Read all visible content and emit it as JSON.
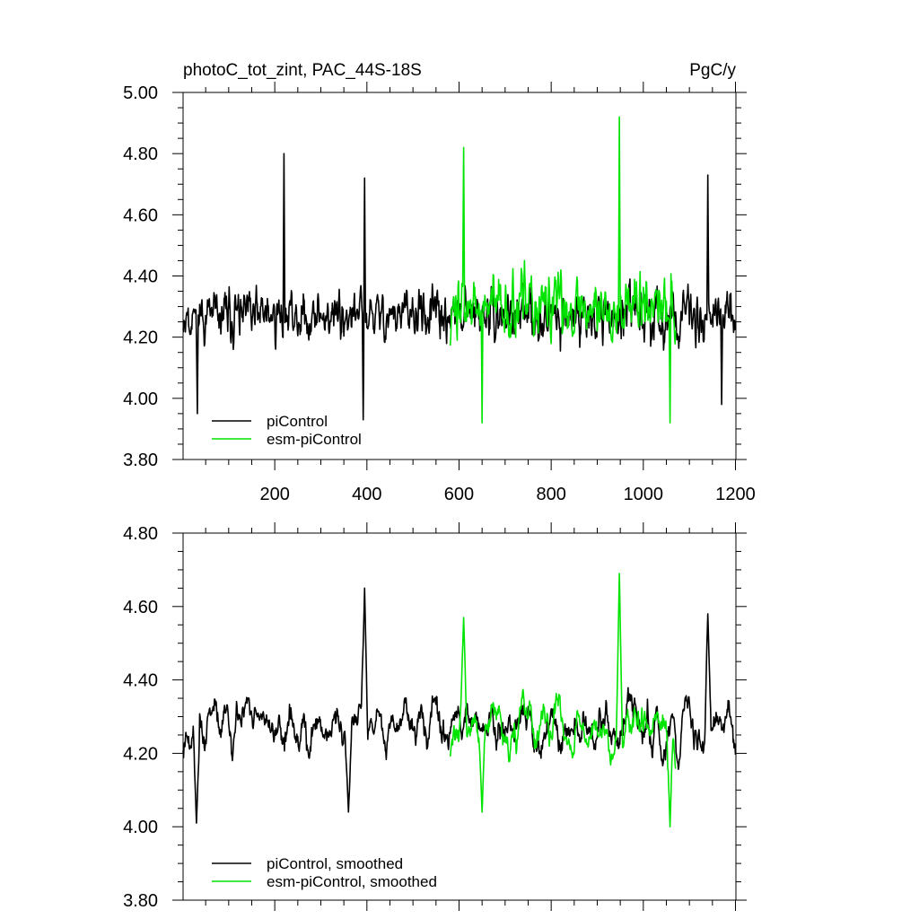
{
  "chart_data": [
    {
      "type": "line",
      "title_left": "photoC_tot_zint, PAC_44S-18S",
      "title_right": "PgC/y",
      "xlabel": "",
      "ylabel": "",
      "xlim": [
        1,
        1201
      ],
      "ylim": [
        3.8,
        5.0
      ],
      "x_ticks": [
        200,
        400,
        600,
        800,
        1000,
        1200
      ],
      "x_tick_labels": [
        "200",
        "400",
        "600",
        "800",
        "1000",
        "1200"
      ],
      "y_ticks": [
        3.8,
        4.0,
        4.2,
        4.4,
        4.6,
        4.8,
        5.0
      ],
      "y_tick_labels": [
        "3.80",
        "4.00",
        "4.20",
        "4.40",
        "4.60",
        "4.80",
        "5.00"
      ],
      "grid": false,
      "legend_position": "bottom-left",
      "series": [
        {
          "name": "piControl",
          "color": "#000000",
          "x_start": 1,
          "x_end": 1200,
          "mean": 4.27,
          "amplitude": 0.14,
          "smoothing": 1,
          "seed": 11,
          "peaks": [
            [
              220,
              4.8
            ],
            [
              395,
              4.72
            ],
            [
              1140,
              4.73
            ],
            [
              32,
              3.95
            ],
            [
              392,
              3.93
            ],
            [
              1170,
              3.98
            ]
          ]
        },
        {
          "name": "esm-piControl",
          "color": "#00e400",
          "x_start": 581,
          "x_end": 1070,
          "mean": 4.3,
          "amplitude": 0.17,
          "smoothing": 1,
          "seed": 37,
          "peaks": [
            [
              610,
              4.82
            ],
            [
              948,
              4.92
            ],
            [
              650,
              3.92
            ],
            [
              1058,
              3.92
            ]
          ]
        }
      ]
    },
    {
      "type": "line",
      "xlim": [
        1,
        1201
      ],
      "ylim": [
        3.8,
        4.8
      ],
      "x_ticks": [
        200,
        400,
        600,
        800,
        1000,
        1200
      ],
      "y_ticks": [
        3.8,
        4.0,
        4.2,
        4.4,
        4.6,
        4.8
      ],
      "y_tick_labels": [
        "3.80",
        "4.00",
        "4.20",
        "4.40",
        "4.60",
        "4.80"
      ],
      "grid": false,
      "legend_position": "bottom-left",
      "series": [
        {
          "name": "piControl, smoothed",
          "color": "#000000",
          "x_start": 1,
          "x_end": 1200,
          "mean": 4.27,
          "amplitude": 0.11,
          "smoothing": 5,
          "seed": 11,
          "peaks": [
            [
              395,
              4.65
            ],
            [
              1140,
              4.58
            ],
            [
              30,
              4.01
            ],
            [
              360,
              4.04
            ]
          ]
        },
        {
          "name": "esm-piControl, smoothed",
          "color": "#00e400",
          "x_start": 581,
          "x_end": 1070,
          "mean": 4.27,
          "amplitude": 0.11,
          "smoothing": 5,
          "seed": 37,
          "peaks": [
            [
              948,
              4.69
            ],
            [
              610,
              4.57
            ],
            [
              1058,
              4.0
            ],
            [
              650,
              4.04
            ]
          ]
        }
      ]
    }
  ]
}
